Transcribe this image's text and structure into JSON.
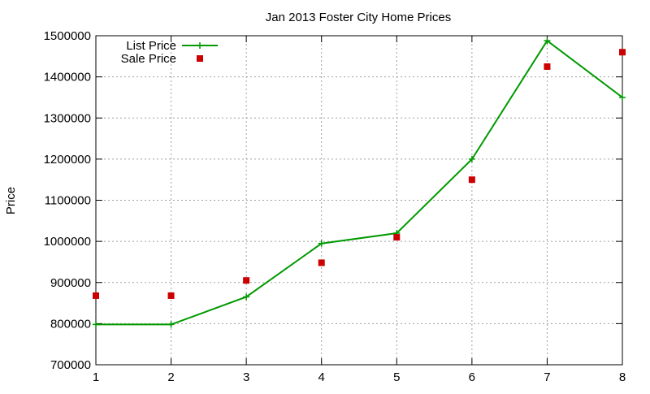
{
  "chart_data": {
    "type": "line",
    "title": "Jan 2013 Foster City Home Prices",
    "xlabel": "",
    "ylabel": "Price",
    "xlim": [
      1,
      8
    ],
    "ylim": [
      700000,
      1500000
    ],
    "x_ticks": [
      "1",
      "2",
      "3",
      "4",
      "5",
      "6",
      "7",
      "8"
    ],
    "y_ticks": [
      "700000",
      "800000",
      "900000",
      "1000000",
      "1100000",
      "1200000",
      "1300000",
      "1400000",
      "1500000"
    ],
    "grid": true,
    "legend_position": "top-left",
    "x": [
      1,
      2,
      3,
      4,
      5,
      6,
      7,
      8
    ],
    "series": [
      {
        "name": "List Price",
        "style": "line-with-plus-markers",
        "color": "#009900",
        "values": [
          798000,
          798000,
          865000,
          995000,
          1020000,
          1200000,
          1488000,
          1350000
        ]
      },
      {
        "name": "Sale Price",
        "style": "square-points",
        "color": "#cc0000",
        "values": [
          868000,
          868000,
          905000,
          948000,
          1010000,
          1150000,
          1425000,
          1460000
        ]
      }
    ]
  }
}
